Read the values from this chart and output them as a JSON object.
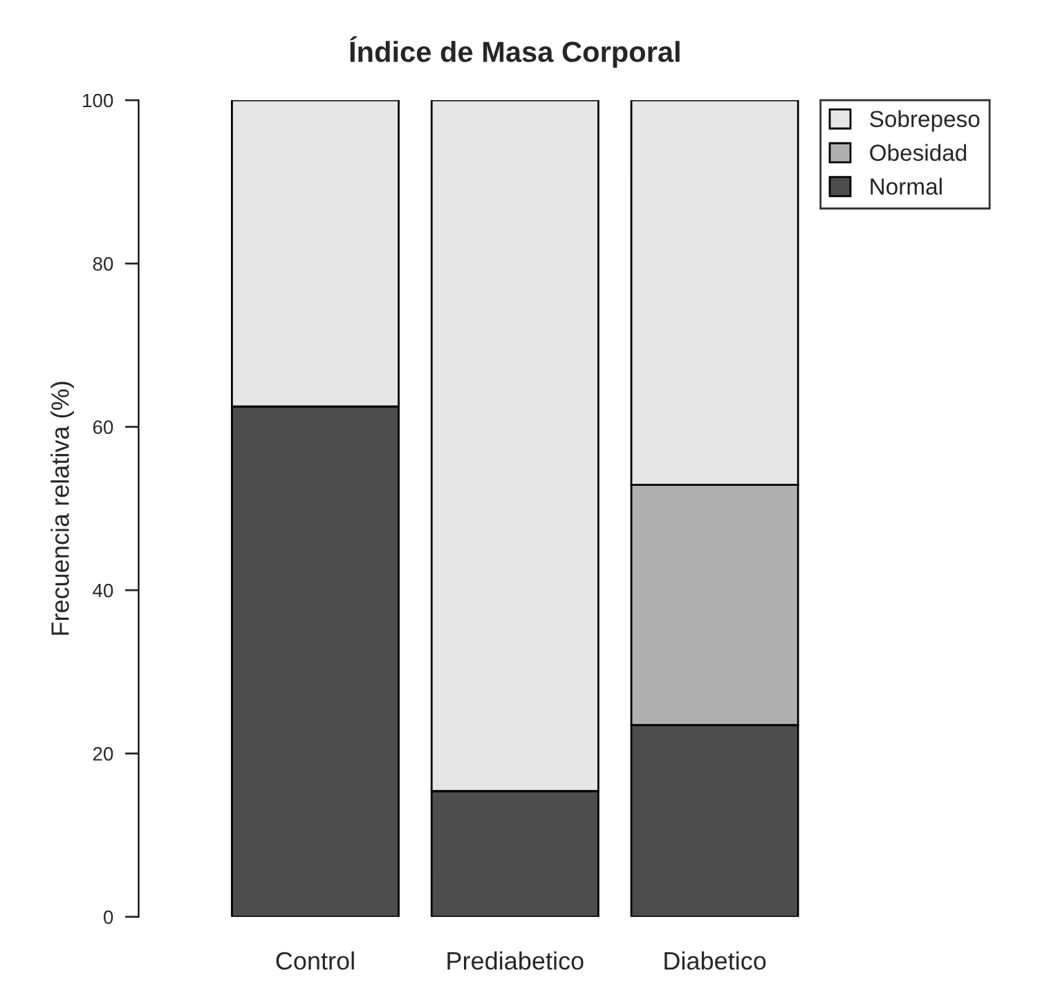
{
  "chart_data": {
    "type": "bar",
    "title": "Índice de Masa Corporal",
    "ylabel": "Frecuencia relativa (%)",
    "categories": [
      "Control",
      "Prediabetico",
      "Diabetico"
    ],
    "stacked": true,
    "series": [
      {
        "name": "Normal",
        "color": "#4d4d4d",
        "values": [
          62.5,
          15.4,
          23.5
        ]
      },
      {
        "name": "Obesidad",
        "color": "#b0b0b0",
        "values": [
          0,
          0,
          29.4
        ]
      },
      {
        "name": "Sobrepeso",
        "color": "#e6e6e6",
        "values": [
          37.5,
          84.6,
          47.1
        ]
      }
    ],
    "ylim": [
      0,
      100
    ],
    "yticks": [
      0,
      20,
      40,
      60,
      80,
      100
    ],
    "grid": false,
    "legend": "top right"
  }
}
